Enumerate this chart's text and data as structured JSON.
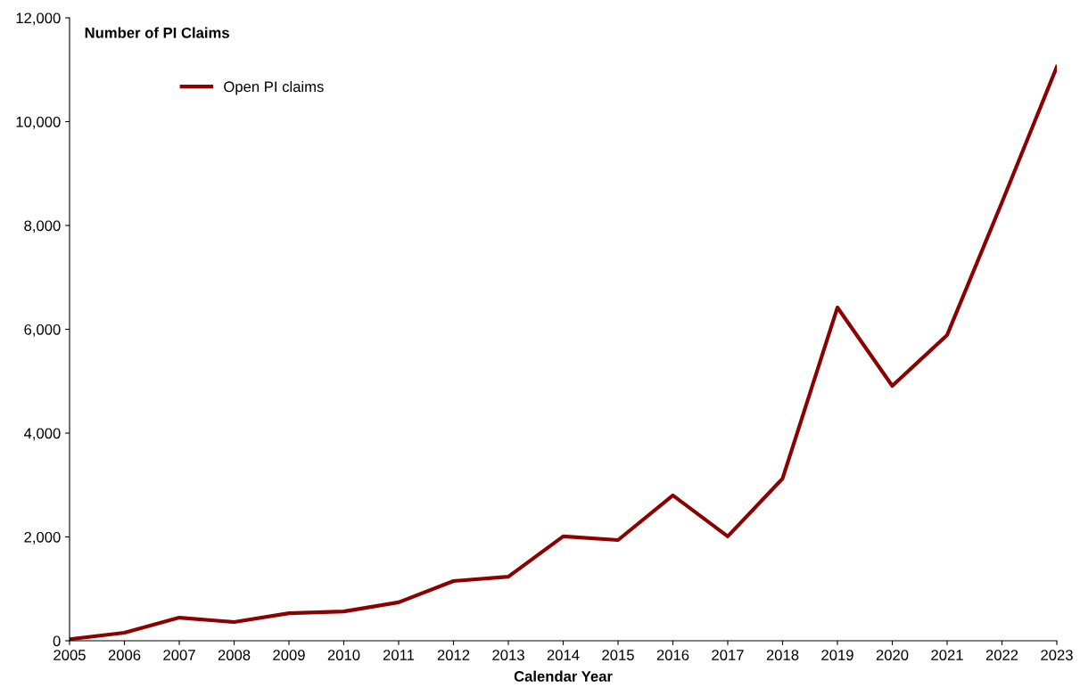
{
  "chart_data": {
    "type": "line",
    "ylabel": "Number of PI Claims",
    "xlabel": "Calendar Year",
    "x": [
      2005,
      2006,
      2007,
      2008,
      2009,
      2010,
      2011,
      2012,
      2013,
      2014,
      2015,
      2016,
      2017,
      2018,
      2019,
      2020,
      2021,
      2022,
      2023
    ],
    "series": [
      {
        "name": "Open PI claims",
        "color": "#8b0000",
        "values": [
          30,
          155,
          445,
          360,
          530,
          565,
          740,
          1150,
          1235,
          2010,
          1940,
          2800,
          2010,
          3125,
          6420,
          4910,
          5890,
          8445,
          11055
        ]
      }
    ],
    "xlim": [
      2005,
      2023
    ],
    "xticks": [
      2005,
      2006,
      2007,
      2008,
      2009,
      2010,
      2011,
      2012,
      2013,
      2014,
      2015,
      2016,
      2017,
      2018,
      2019,
      2020,
      2021,
      2022,
      2023
    ],
    "ylim": [
      0,
      12000
    ],
    "yticks": [
      {
        "value": 0,
        "label": "0"
      },
      {
        "value": 2000,
        "label": "2,000"
      },
      {
        "value": 4000,
        "label": "4,000"
      },
      {
        "value": 6000,
        "label": "6,000"
      },
      {
        "value": 8000,
        "label": "8,000"
      },
      {
        "value": 10000,
        "label": "10,000"
      },
      {
        "value": 12000,
        "label": "12,000"
      }
    ],
    "grid": false,
    "legend": "top left",
    "marker": "none",
    "line_style": "solid"
  }
}
